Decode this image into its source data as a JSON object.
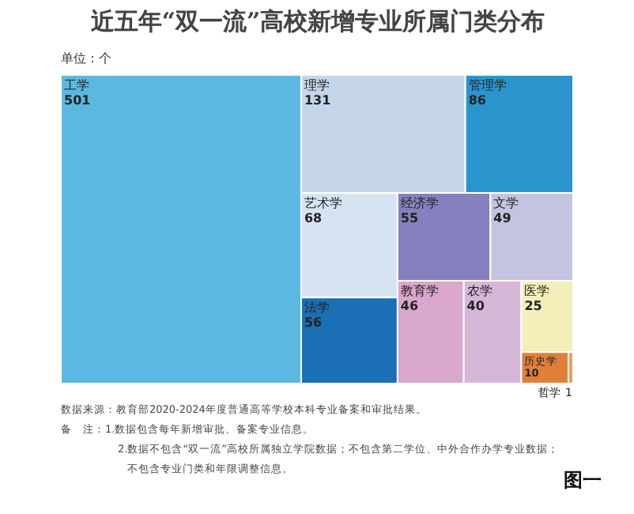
{
  "chart_data": {
    "type": "other",
    "title": "近五年“双一流”高校新增专业所属门类分布",
    "subtitle": "单位：个",
    "categories": [
      "工学",
      "理学",
      "管理学",
      "艺术学",
      "法学",
      "文学",
      "农学",
      "经济学",
      "教育学",
      "医学",
      "历史学",
      "哲学"
    ],
    "values": [
      501,
      131,
      86,
      68,
      56,
      49,
      40,
      55,
      46,
      25,
      10,
      1
    ],
    "colors": [
      "#5bb8e0",
      "#c5d6ea",
      "#2a95cc",
      "#d6e4f2",
      "#1a6fb5",
      "#c4c3e0",
      "#d6b7d8",
      "#8680bf",
      "#d9a8cc",
      "#f4efb8",
      "#e07f3a",
      "#e8a060"
    ],
    "data_labels": true,
    "annotations": [
      "数据来源：教育部2020-2024年度普通高等学校本科专业备案和审批结果。",
      "备　注：1.数据包含每年新增审批、备案专业信息。",
      "2.数据不包含“双一流”高校所属独立学院数据；不包含第二学位、中外合作办学专业数据；",
      "不包含专业门类和年限调整信息。",
      "图一"
    ]
  }
}
